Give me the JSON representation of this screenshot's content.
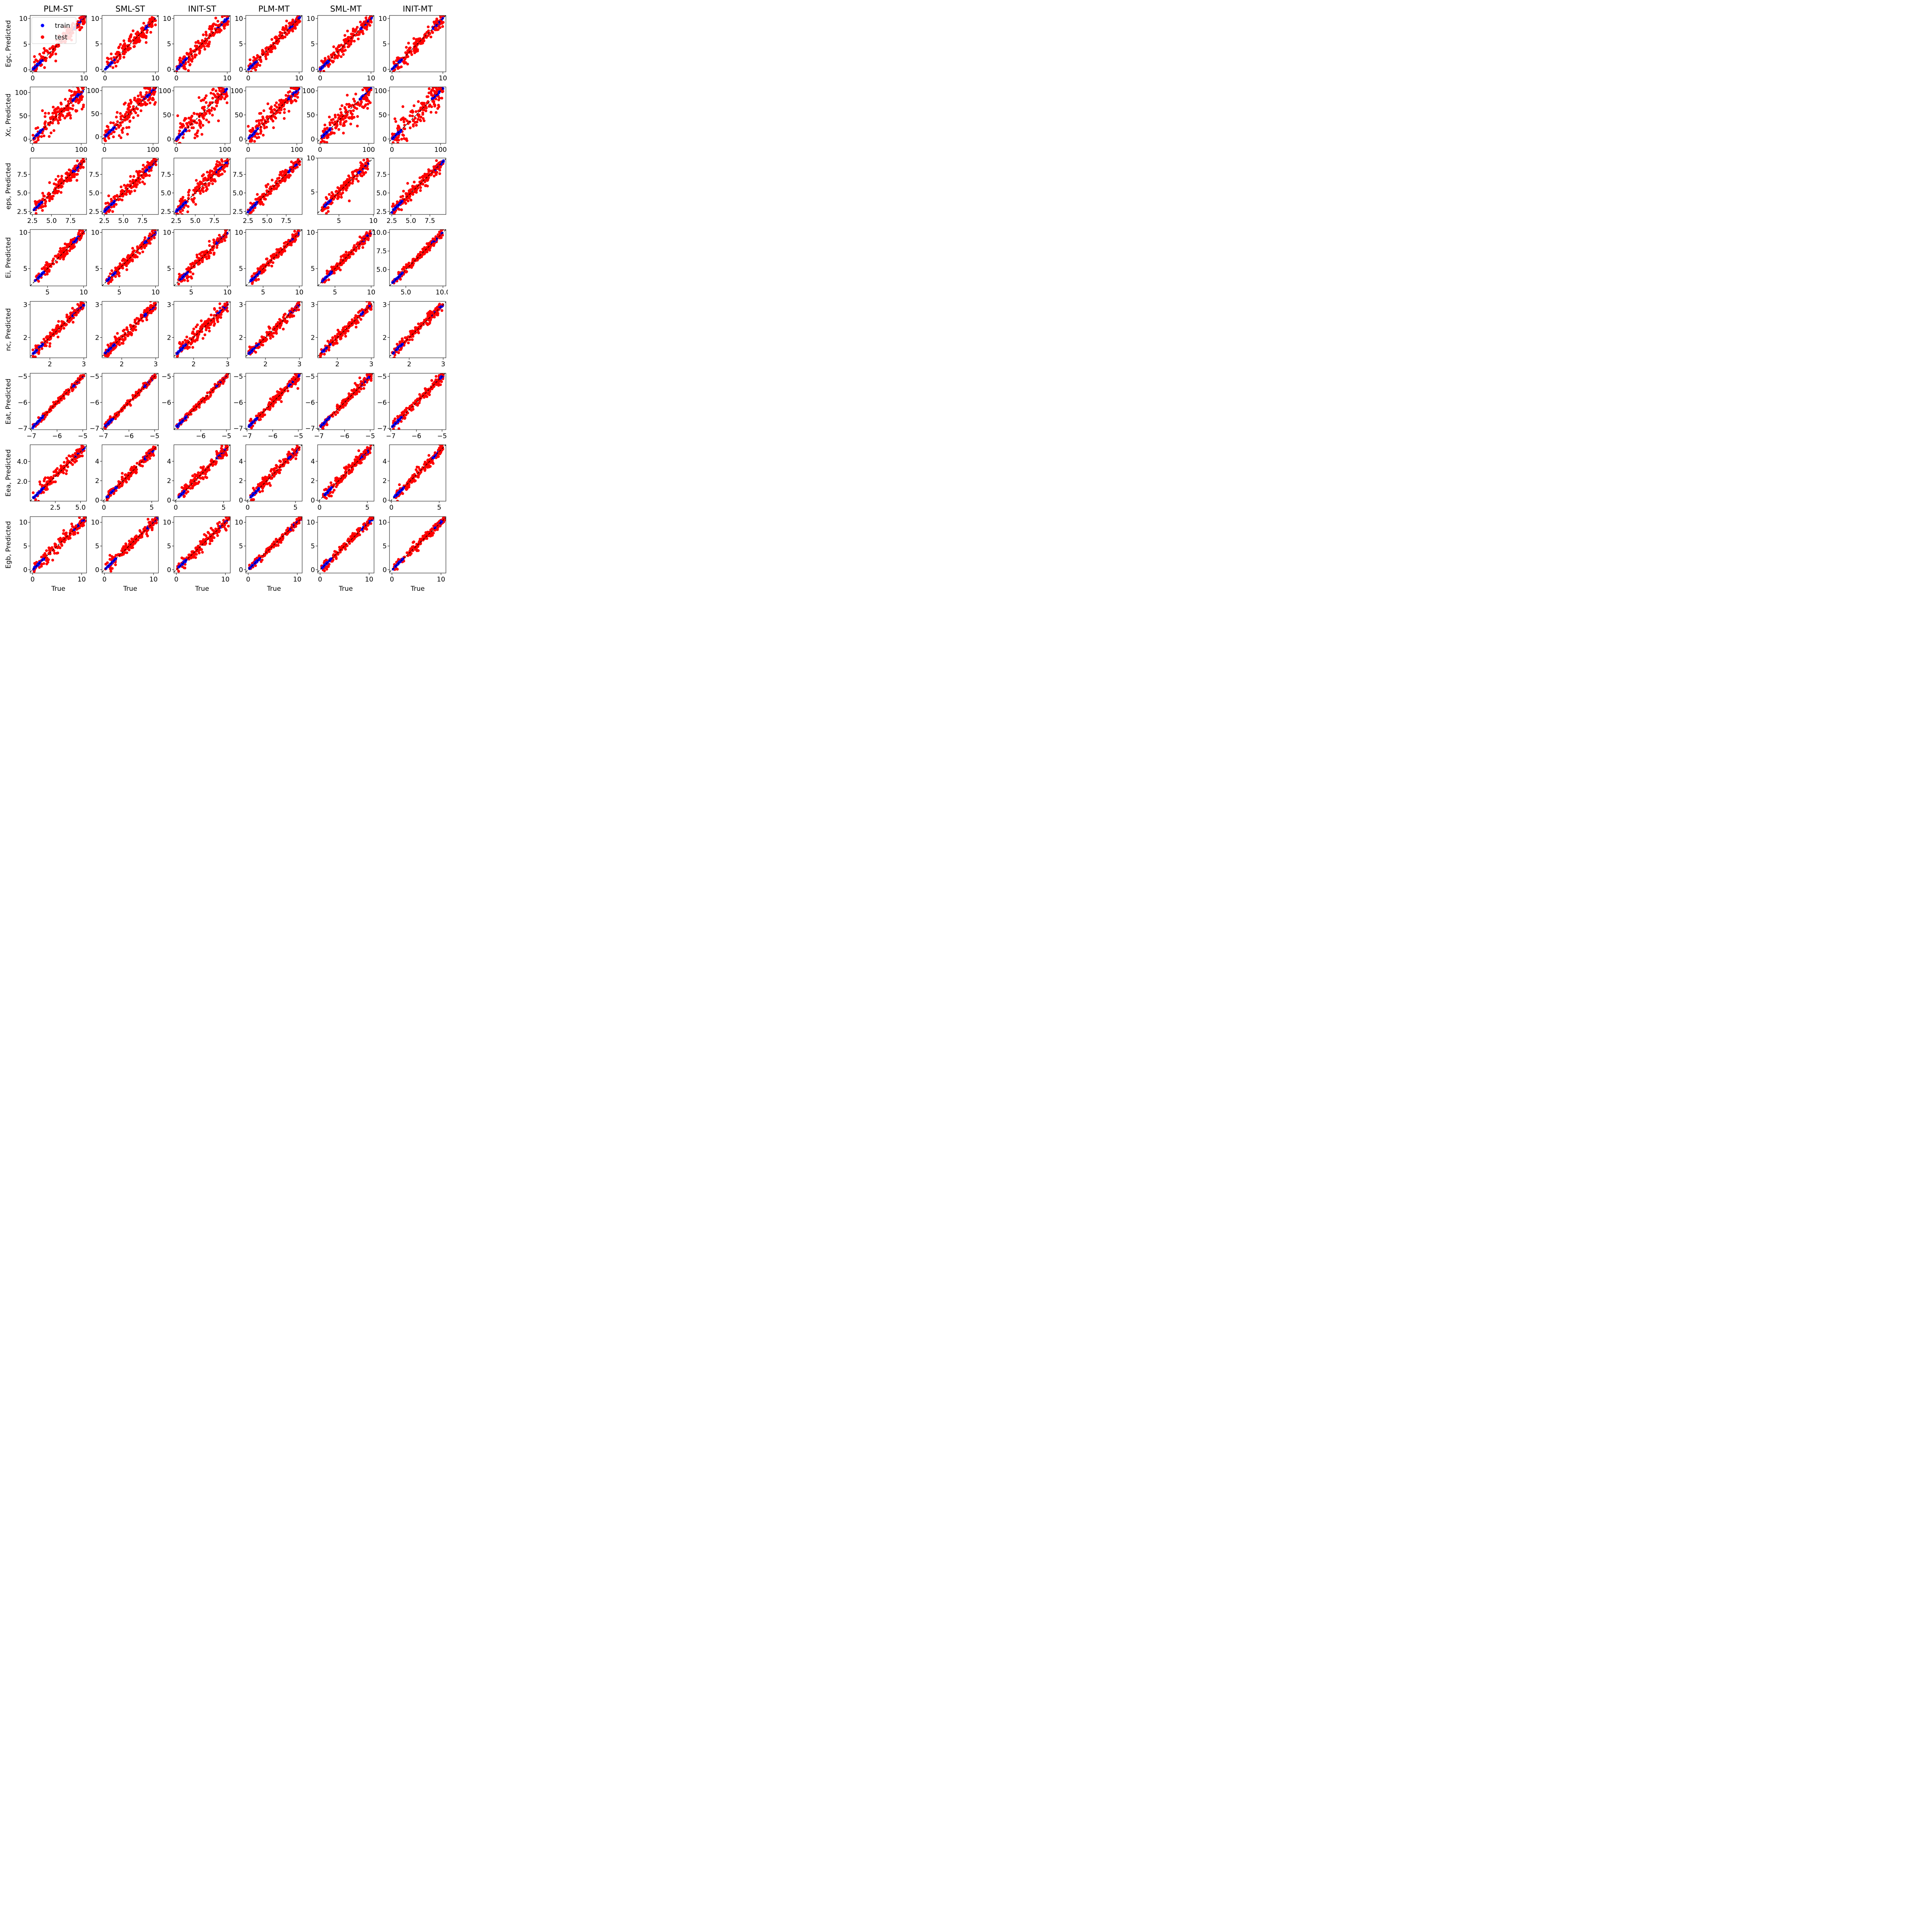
{
  "figure": {
    "legend": {
      "items": [
        {
          "label": "train",
          "color": "#0000ff"
        },
        {
          "label": "test",
          "color": "#ff0000"
        }
      ],
      "placement": "upper-left of first panel"
    },
    "xlabel": "True",
    "colors": {
      "train": "#0000ff",
      "test": "#ff0000",
      "identity_line": "#000000"
    }
  },
  "columns": [
    "PLM-ST",
    "SML-ST",
    "INIT-ST",
    "PLM-MT",
    "SML-MT",
    "INIT-MT"
  ],
  "rows": [
    {
      "ylabel": "Egc, Predicted"
    },
    {
      "ylabel": "Xc, Predicted"
    },
    {
      "ylabel": "eps, Predicted"
    },
    {
      "ylabel": "Ei, Predicted"
    },
    {
      "ylabel": "nc, Predicted"
    },
    {
      "ylabel": "Eat, Predicted"
    },
    {
      "ylabel": "Eea, Predicted"
    },
    {
      "ylabel": "Egb, Predicted"
    }
  ],
  "chart_data": [
    {
      "type": "scatter",
      "row": 0,
      "col": 0,
      "series": [
        {
          "name": "train"
        },
        {
          "name": "test"
        }
      ],
      "xlim": [
        -0.5,
        10.5
      ],
      "ylim": [
        -0.4,
        10.6
      ],
      "xticks": [
        0,
        10
      ],
      "yticks": [
        0,
        5,
        10
      ],
      "data_min": 0,
      "data_max": 10.2,
      "spread": 0.75
    },
    {
      "type": "scatter",
      "row": 0,
      "col": 1,
      "xlim": [
        -0.6,
        10.6
      ],
      "ylim": [
        -0.5,
        10.6
      ],
      "xticks": [
        0,
        10
      ],
      "yticks": [
        0,
        5,
        10
      ],
      "data_min": 0,
      "data_max": 10.2,
      "spread": 0.72
    },
    {
      "type": "scatter",
      "row": 0,
      "col": 2,
      "xlim": [
        -0.5,
        10.6
      ],
      "ylim": [
        -0.5,
        10.6
      ],
      "xticks": [
        0,
        10
      ],
      "yticks": [
        0,
        5,
        10
      ],
      "data_min": 0,
      "data_max": 10.2,
      "spread": 0.85
    },
    {
      "type": "scatter",
      "row": 0,
      "col": 3,
      "xlim": [
        -0.5,
        10.6
      ],
      "ylim": [
        -0.5,
        10.6
      ],
      "xticks": [
        0,
        10
      ],
      "yticks": [
        0,
        5,
        10
      ],
      "data_min": 0,
      "data_max": 10.2,
      "spread": 0.7
    },
    {
      "type": "scatter",
      "row": 0,
      "col": 4,
      "xlim": [
        -0.5,
        10.6
      ],
      "ylim": [
        -0.5,
        10.6
      ],
      "xticks": [
        0,
        10
      ],
      "yticks": [
        0,
        5,
        10
      ],
      "data_min": 0,
      "data_max": 10.2,
      "spread": 0.75
    },
    {
      "type": "scatter",
      "row": 0,
      "col": 5,
      "xlim": [
        -0.5,
        10.6
      ],
      "ylim": [
        -0.5,
        10.6
      ],
      "xticks": [
        0,
        10
      ],
      "yticks": [
        0,
        5,
        10
      ],
      "data_min": 0,
      "data_max": 10.2,
      "spread": 0.78
    },
    {
      "type": "scatter",
      "row": 1,
      "col": 0,
      "xlim": [
        -5,
        111
      ],
      "ylim": [
        -9,
        112
      ],
      "xticks": [
        0,
        100
      ],
      "yticks": [
        0,
        50,
        100
      ],
      "data_min": 0,
      "data_max": 105,
      "spread": 14
    },
    {
      "type": "scatter",
      "row": 1,
      "col": 1,
      "xlim": [
        -5,
        111
      ],
      "ylim": [
        -14,
        108
      ],
      "xticks": [
        0,
        100
      ],
      "yticks": [
        0,
        50,
        100
      ],
      "data_min": 0,
      "data_max": 105,
      "spread": 14
    },
    {
      "type": "scatter",
      "row": 1,
      "col": 2,
      "xlim": [
        -5,
        111
      ],
      "ylim": [
        -9,
        108
      ],
      "xticks": [
        0,
        100
      ],
      "yticks": [
        0,
        50,
        100
      ],
      "data_min": 0,
      "data_max": 105,
      "spread": 18
    },
    {
      "type": "scatter",
      "row": 1,
      "col": 3,
      "xlim": [
        -5,
        111
      ],
      "ylim": [
        -9,
        108
      ],
      "xticks": [
        0,
        100
      ],
      "yticks": [
        0,
        50,
        100
      ],
      "data_min": 0,
      "data_max": 105,
      "spread": 13
    },
    {
      "type": "scatter",
      "row": 1,
      "col": 4,
      "xlim": [
        -5,
        111
      ],
      "ylim": [
        -9,
        108
      ],
      "xticks": [
        0,
        100
      ],
      "yticks": [
        0,
        50,
        100
      ],
      "data_min": 0,
      "data_max": 105,
      "spread": 13
    },
    {
      "type": "scatter",
      "row": 1,
      "col": 5,
      "xlim": [
        -5,
        111
      ],
      "ylim": [
        -9,
        108
      ],
      "xticks": [
        0,
        100
      ],
      "yticks": [
        0,
        50,
        100
      ],
      "data_min": 0,
      "data_max": 105,
      "spread": 15
    },
    {
      "type": "scatter",
      "row": 2,
      "col": 0,
      "xlim": [
        2.2,
        9.6
      ],
      "ylim": [
        2.1,
        9.7
      ],
      "xticks": [
        2.5,
        5.0,
        7.5
      ],
      "yticks": [
        2.5,
        5.0,
        7.5
      ],
      "tick_fmt": 1,
      "data_min": 2.5,
      "data_max": 9.3,
      "spread": 0.55
    },
    {
      "type": "scatter",
      "row": 2,
      "col": 1,
      "xlim": [
        2.2,
        9.6
      ],
      "ylim": [
        2.1,
        9.7
      ],
      "xticks": [
        2.5,
        5.0,
        7.5
      ],
      "yticks": [
        2.5,
        5.0,
        7.5
      ],
      "tick_fmt": 1,
      "data_min": 2.5,
      "data_max": 9.3,
      "spread": 0.55
    },
    {
      "type": "scatter",
      "row": 2,
      "col": 2,
      "xlim": [
        2.2,
        9.6
      ],
      "ylim": [
        2.1,
        9.7
      ],
      "xticks": [
        2.5,
        5.0,
        7.5
      ],
      "yticks": [
        2.5,
        5.0,
        7.5
      ],
      "tick_fmt": 1,
      "data_min": 2.5,
      "data_max": 9.3,
      "spread": 0.65
    },
    {
      "type": "scatter",
      "row": 2,
      "col": 3,
      "xlim": [
        2.2,
        9.6
      ],
      "ylim": [
        2.1,
        9.7
      ],
      "xticks": [
        2.5,
        5.0,
        7.5
      ],
      "yticks": [
        2.5,
        5.0,
        7.5
      ],
      "tick_fmt": 1,
      "data_min": 2.5,
      "data_max": 9.3,
      "spread": 0.4
    },
    {
      "type": "scatter",
      "row": 2,
      "col": 4,
      "xlim": [
        1.9,
        10.1
      ],
      "ylim": [
        1.7,
        10.0
      ],
      "xticks": [
        5,
        10
      ],
      "yticks": [
        5,
        10
      ],
      "data_min": 2.5,
      "data_max": 9.3,
      "spread": 0.5
    },
    {
      "type": "scatter",
      "row": 2,
      "col": 5,
      "xlim": [
        2.2,
        9.6
      ],
      "ylim": [
        2.1,
        9.7
      ],
      "xticks": [
        2.5,
        5.0,
        7.5
      ],
      "yticks": [
        2.5,
        5.0,
        7.5
      ],
      "tick_fmt": 1,
      "data_min": 2.5,
      "data_max": 9.3,
      "spread": 0.5
    },
    {
      "type": "scatter",
      "row": 3,
      "col": 0,
      "xlim": [
        2.6,
        10.4
      ],
      "ylim": [
        2.6,
        10.4
      ],
      "xticks": [
        5,
        10
      ],
      "yticks": [
        5,
        10
      ],
      "data_min": 3.2,
      "data_max": 10.0,
      "spread": 0.4
    },
    {
      "type": "scatter",
      "row": 3,
      "col": 1,
      "xlim": [
        2.6,
        10.4
      ],
      "ylim": [
        2.6,
        10.4
      ],
      "xticks": [
        5,
        10
      ],
      "yticks": [
        5,
        10
      ],
      "data_min": 3.2,
      "data_max": 10.0,
      "spread": 0.4
    },
    {
      "type": "scatter",
      "row": 3,
      "col": 2,
      "xlim": [
        2.6,
        10.4
      ],
      "ylim": [
        2.6,
        10.4
      ],
      "xticks": [
        5,
        10
      ],
      "yticks": [
        5,
        10
      ],
      "data_min": 3.2,
      "data_max": 10.0,
      "spread": 0.45
    },
    {
      "type": "scatter",
      "row": 3,
      "col": 3,
      "xlim": [
        2.6,
        10.4
      ],
      "ylim": [
        2.6,
        10.4
      ],
      "xticks": [
        5,
        10
      ],
      "yticks": [
        5,
        10
      ],
      "data_min": 3.2,
      "data_max": 10.0,
      "spread": 0.3
    },
    {
      "type": "scatter",
      "row": 3,
      "col": 4,
      "xlim": [
        2.6,
        10.4
      ],
      "ylim": [
        2.6,
        10.4
      ],
      "xticks": [
        5,
        10
      ],
      "yticks": [
        5,
        10
      ],
      "data_min": 3.2,
      "data_max": 10.0,
      "spread": 0.35
    },
    {
      "type": "scatter",
      "row": 3,
      "col": 5,
      "xlim": [
        2.8,
        10.4
      ],
      "ylim": [
        2.8,
        10.4
      ],
      "xticks": [
        5,
        10
      ],
      "yticks": [
        5.0,
        7.5,
        10.0
      ],
      "tick_fmt": 1,
      "data_min": 3.2,
      "data_max": 10.0,
      "spread": 0.3
    },
    {
      "type": "scatter",
      "row": 4,
      "col": 0,
      "xlim": [
        1.42,
        3.08
      ],
      "ylim": [
        1.38,
        3.1
      ],
      "xticks": [
        2,
        3
      ],
      "yticks": [
        2,
        3
      ],
      "data_min": 1.5,
      "data_max": 3.0,
      "spread": 0.1
    },
    {
      "type": "scatter",
      "row": 4,
      "col": 1,
      "xlim": [
        1.42,
        3.08
      ],
      "ylim": [
        1.38,
        3.1
      ],
      "xticks": [
        2,
        3
      ],
      "yticks": [
        2,
        3
      ],
      "data_min": 1.5,
      "data_max": 3.0,
      "spread": 0.1
    },
    {
      "type": "scatter",
      "row": 4,
      "col": 2,
      "xlim": [
        1.42,
        3.08
      ],
      "ylim": [
        1.38,
        3.1
      ],
      "xticks": [
        2,
        3
      ],
      "yticks": [
        2,
        3
      ],
      "data_min": 1.5,
      "data_max": 3.0,
      "spread": 0.12
    },
    {
      "type": "scatter",
      "row": 4,
      "col": 3,
      "xlim": [
        1.42,
        3.08
      ],
      "ylim": [
        1.38,
        3.1
      ],
      "xticks": [
        2,
        3
      ],
      "yticks": [
        2,
        3
      ],
      "data_min": 1.5,
      "data_max": 3.0,
      "spread": 0.08
    },
    {
      "type": "scatter",
      "row": 4,
      "col": 4,
      "xlim": [
        1.42,
        3.08
      ],
      "ylim": [
        1.38,
        3.1
      ],
      "xticks": [
        2,
        3
      ],
      "yticks": [
        2,
        3
      ],
      "data_min": 1.5,
      "data_max": 3.0,
      "spread": 0.08
    },
    {
      "type": "scatter",
      "row": 4,
      "col": 5,
      "xlim": [
        1.42,
        3.08
      ],
      "ylim": [
        1.38,
        3.1
      ],
      "xticks": [
        2,
        3
      ],
      "yticks": [
        2,
        3
      ],
      "data_min": 1.5,
      "data_max": 3.0,
      "spread": 0.08
    },
    {
      "type": "scatter",
      "row": 5,
      "col": 0,
      "xlim": [
        -7.05,
        -4.85
      ],
      "ylim": [
        -7.05,
        -4.88
      ],
      "xticks": [
        -7,
        -6,
        -5
      ],
      "yticks": [
        -7,
        -6,
        -5
      ],
      "data_min": -6.95,
      "data_max": -4.95,
      "spread": 0.06
    },
    {
      "type": "scatter",
      "row": 5,
      "col": 1,
      "xlim": [
        -7.05,
        -4.85
      ],
      "ylim": [
        -7.05,
        -4.88
      ],
      "xticks": [
        -7,
        -6,
        -5
      ],
      "yticks": [
        -7,
        -6,
        -5
      ],
      "data_min": -6.95,
      "data_max": -4.95,
      "spread": 0.06
    },
    {
      "type": "scatter",
      "row": 5,
      "col": 2,
      "xlim": [
        -7.05,
        -4.85
      ],
      "ylim": [
        -7.05,
        -4.88
      ],
      "xticks": [
        -6,
        -5
      ],
      "yticks": [
        -6,
        -5
      ],
      "data_min": -6.95,
      "data_max": -4.95,
      "spread": 0.06
    },
    {
      "type": "scatter",
      "row": 5,
      "col": 3,
      "xlim": [
        -7.05,
        -4.85
      ],
      "ylim": [
        -7.05,
        -4.88
      ],
      "xticks": [
        -7,
        -6,
        -5
      ],
      "yticks": [
        -7,
        -6,
        -5
      ],
      "data_min": -6.95,
      "data_max": -4.95,
      "spread": 0.1
    },
    {
      "type": "scatter",
      "row": 5,
      "col": 4,
      "xlim": [
        -7.05,
        -4.85
      ],
      "ylim": [
        -7.05,
        -4.88
      ],
      "xticks": [
        -7,
        -6,
        -5
      ],
      "yticks": [
        -7,
        -6,
        -5
      ],
      "data_min": -6.95,
      "data_max": -4.95,
      "spread": 0.1
    },
    {
      "type": "scatter",
      "row": 5,
      "col": 5,
      "xlim": [
        -7.05,
        -4.85
      ],
      "ylim": [
        -7.05,
        -4.88
      ],
      "xticks": [
        -7,
        -6,
        -5
      ],
      "yticks": [
        -7,
        -6,
        -5
      ],
      "data_min": -6.95,
      "data_max": -4.95,
      "spread": 0.1
    },
    {
      "type": "scatter",
      "row": 6,
      "col": 0,
      "xlim": [
        0.0,
        5.6
      ],
      "ylim": [
        0.0,
        5.7
      ],
      "xticks": [
        2.5,
        5.0
      ],
      "yticks": [
        2,
        4
      ],
      "tick_fmt": 1,
      "data_min": 0.3,
      "data_max": 5.4,
      "spread": 0.3
    },
    {
      "type": "scatter",
      "row": 6,
      "col": 1,
      "xlim": [
        -0.2,
        5.7
      ],
      "ylim": [
        -0.1,
        5.7
      ],
      "xticks": [
        0,
        5
      ],
      "yticks": [
        0,
        2,
        4
      ],
      "data_min": 0.3,
      "data_max": 5.4,
      "spread": 0.3
    },
    {
      "type": "scatter",
      "row": 6,
      "col": 2,
      "xlim": [
        -0.2,
        5.7
      ],
      "ylim": [
        -0.1,
        5.7
      ],
      "xticks": [
        0,
        5
      ],
      "yticks": [
        0,
        2,
        4
      ],
      "data_min": 0.3,
      "data_max": 5.4,
      "spread": 0.35
    },
    {
      "type": "scatter",
      "row": 6,
      "col": 3,
      "xlim": [
        -0.2,
        5.7
      ],
      "ylim": [
        -0.1,
        5.7
      ],
      "xticks": [
        0,
        5
      ],
      "yticks": [
        0,
        2,
        4
      ],
      "data_min": 0.3,
      "data_max": 5.4,
      "spread": 0.3
    },
    {
      "type": "scatter",
      "row": 6,
      "col": 4,
      "xlim": [
        -0.2,
        5.7
      ],
      "ylim": [
        -0.1,
        5.7
      ],
      "xticks": [
        0,
        5
      ],
      "yticks": [
        0,
        2,
        4
      ],
      "data_min": 0.3,
      "data_max": 5.4,
      "spread": 0.3
    },
    {
      "type": "scatter",
      "row": 6,
      "col": 5,
      "xlim": [
        -0.2,
        5.7
      ],
      "ylim": [
        -0.1,
        5.7
      ],
      "xticks": [
        0,
        5
      ],
      "yticks": [
        0,
        2,
        4
      ],
      "data_min": 0.3,
      "data_max": 5.4,
      "spread": 0.3
    },
    {
      "type": "scatter",
      "row": 7,
      "col": 0,
      "xlim": [
        -0.5,
        11.0
      ],
      "ylim": [
        -0.7,
        11.2
      ],
      "xticks": [
        0,
        10
      ],
      "yticks": [
        0,
        5,
        10
      ],
      "data_min": 0.2,
      "data_max": 10.8,
      "spread": 0.6
    },
    {
      "type": "scatter",
      "row": 7,
      "col": 1,
      "xlim": [
        -0.5,
        11.0
      ],
      "ylim": [
        -0.7,
        11.2
      ],
      "xticks": [
        0,
        10
      ],
      "yticks": [
        0,
        5,
        10
      ],
      "data_min": 0.2,
      "data_max": 10.8,
      "spread": 0.6
    },
    {
      "type": "scatter",
      "row": 7,
      "col": 2,
      "xlim": [
        -0.5,
        11.0
      ],
      "ylim": [
        -0.7,
        11.2
      ],
      "xticks": [
        0,
        10
      ],
      "yticks": [
        0,
        5,
        10
      ],
      "data_min": 0.2,
      "data_max": 10.8,
      "spread": 0.65
    },
    {
      "type": "scatter",
      "row": 7,
      "col": 3,
      "xlim": [
        -0.5,
        11.0
      ],
      "ylim": [
        -0.7,
        11.2
      ],
      "xticks": [
        0,
        10
      ],
      "yticks": [
        0,
        5,
        10
      ],
      "data_min": 0.2,
      "data_max": 10.8,
      "spread": 0.4
    },
    {
      "type": "scatter",
      "row": 7,
      "col": 4,
      "xlim": [
        -0.5,
        11.0
      ],
      "ylim": [
        -0.7,
        11.2
      ],
      "xticks": [
        0,
        10
      ],
      "yticks": [
        0,
        5,
        10
      ],
      "data_min": 0.2,
      "data_max": 10.8,
      "spread": 0.45
    },
    {
      "type": "scatter",
      "row": 7,
      "col": 5,
      "xlim": [
        -0.5,
        11.0
      ],
      "ylim": [
        -0.7,
        11.2
      ],
      "xticks": [
        0,
        10
      ],
      "yticks": [
        0,
        5,
        10
      ],
      "data_min": 0.2,
      "data_max": 10.8,
      "spread": 0.45
    }
  ]
}
